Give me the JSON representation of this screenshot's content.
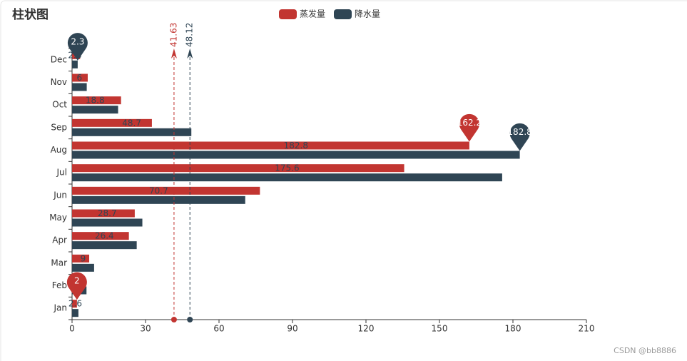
{
  "chart_data": {
    "type": "bar",
    "orientation": "horizontal",
    "title": "柱状图",
    "categories": [
      "Jan",
      "Feb",
      "Mar",
      "Apr",
      "May",
      "Jun",
      "Jul",
      "Aug",
      "Sep",
      "Oct",
      "Nov",
      "Dec"
    ],
    "series": [
      {
        "name": "蒸发量",
        "color": "#c23531",
        "values": [
          2,
          4.9,
          7,
          23.2,
          25.6,
          76.7,
          135.6,
          162.2,
          32.6,
          20,
          6.4,
          3.3
        ],
        "mark_points": [
          162.2,
          2
        ],
        "average": 41.63
      },
      {
        "name": "降水量",
        "color": "#2f4554",
        "values": [
          2.6,
          5.9,
          9,
          26.4,
          28.7,
          70.7,
          175.6,
          182.8,
          48.7,
          18.8,
          6,
          2.3
        ],
        "mark_points": [
          182.8,
          2.3
        ],
        "average": 48.12
      }
    ],
    "xlim": [
      0,
      210
    ],
    "xticks": [
      0,
      30,
      60,
      90,
      120,
      150,
      180,
      210
    ],
    "grid": false,
    "watermark": "CSDN @bb8886"
  }
}
